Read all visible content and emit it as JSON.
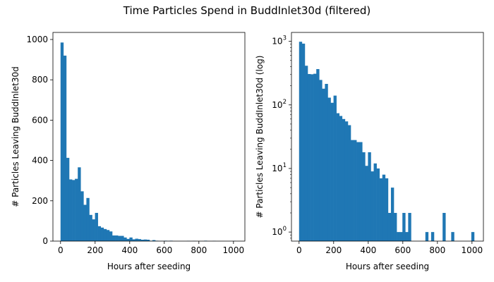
{
  "suptitle": "Time Particles Spend in BuddInlet30d (filtered)",
  "bar_color": "#1f77b4",
  "chart_data": [
    {
      "type": "bar",
      "panel": "linear",
      "xlabel": "Hours after seeding",
      "ylabel": "# Particles Leaving BuddInlet30d",
      "xlim": [
        -44,
        1066
      ],
      "ylim": [
        0,
        1035
      ],
      "yscale": "linear",
      "xticks": [
        0,
        200,
        400,
        600,
        800,
        1000
      ],
      "yticks": [
        0,
        200,
        400,
        600,
        800,
        1000
      ],
      "bin_width": 16.6,
      "bin_starts": [
        0,
        16.6,
        33.2,
        49.8,
        66.4,
        83,
        99.6,
        116.2,
        132.8,
        149.4,
        166,
        182.6,
        199.2,
        215.8,
        232.4,
        249,
        265.6,
        282.2,
        298.8,
        315.4,
        332,
        348.6,
        365.2,
        381.8,
        398.4,
        415,
        431.6,
        448.2,
        464.8,
        481.4,
        498,
        514.6,
        531.2,
        547.8,
        564.4,
        581,
        597.6,
        614.2,
        630.8,
        647.4,
        664,
        680.6,
        697.2,
        713.8,
        730.4,
        747,
        763.6,
        780.2,
        796.8,
        813.4,
        830,
        846.6,
        863.2,
        879.8,
        896.4,
        913,
        929.6,
        946.2,
        962.8,
        979.4,
        996
      ],
      "values": [
        985,
        920,
        413,
        306,
        303,
        309,
        366,
        247,
        180,
        214,
        130,
        108,
        140,
        74,
        67,
        60,
        55,
        48,
        28,
        28,
        26,
        26,
        18,
        11,
        18,
        9,
        12,
        10,
        7,
        8,
        7,
        2,
        5,
        2,
        1,
        1,
        2,
        1,
        2,
        0,
        0,
        0,
        0,
        0,
        1,
        0,
        1,
        0,
        0,
        0,
        2,
        0,
        0,
        1,
        0,
        0,
        0,
        0,
        0,
        0,
        1
      ]
    },
    {
      "type": "bar",
      "panel": "log",
      "xlabel": "Hours after seeding",
      "ylabel": "# Particles Leaving BuddInlet30d (log)",
      "xlim": [
        -44,
        1066
      ],
      "ylim": [
        0.72,
        1380
      ],
      "yscale": "log",
      "xticks": [
        0,
        200,
        400,
        600,
        800,
        1000
      ],
      "yticks": [
        1,
        10,
        100,
        1000
      ],
      "ytick_labels": [
        "10^0",
        "10^1",
        "10^2",
        "10^3"
      ],
      "bin_width": 16.6,
      "bin_starts": [
        0,
        16.6,
        33.2,
        49.8,
        66.4,
        83,
        99.6,
        116.2,
        132.8,
        149.4,
        166,
        182.6,
        199.2,
        215.8,
        232.4,
        249,
        265.6,
        282.2,
        298.8,
        315.4,
        332,
        348.6,
        365.2,
        381.8,
        398.4,
        415,
        431.6,
        448.2,
        464.8,
        481.4,
        498,
        514.6,
        531.2,
        547.8,
        564.4,
        581,
        597.6,
        614.2,
        630.8,
        647.4,
        664,
        680.6,
        697.2,
        713.8,
        730.4,
        747,
        763.6,
        780.2,
        796.8,
        813.4,
        830,
        846.6,
        863.2,
        879.8,
        896.4,
        913,
        929.6,
        946.2,
        962.8,
        979.4,
        996
      ],
      "values": [
        985,
        920,
        413,
        306,
        303,
        309,
        366,
        247,
        180,
        214,
        130,
        108,
        140,
        74,
        67,
        60,
        55,
        48,
        28,
        28,
        26,
        26,
        18,
        11,
        18,
        9,
        12,
        10,
        7,
        8,
        7,
        2,
        5,
        2,
        1,
        1,
        2,
        1,
        2,
        0,
        0,
        0,
        0,
        0,
        1,
        0,
        1,
        0,
        0,
        0,
        2,
        0,
        0,
        1,
        0,
        0,
        0,
        0,
        0,
        0,
        1
      ]
    }
  ]
}
